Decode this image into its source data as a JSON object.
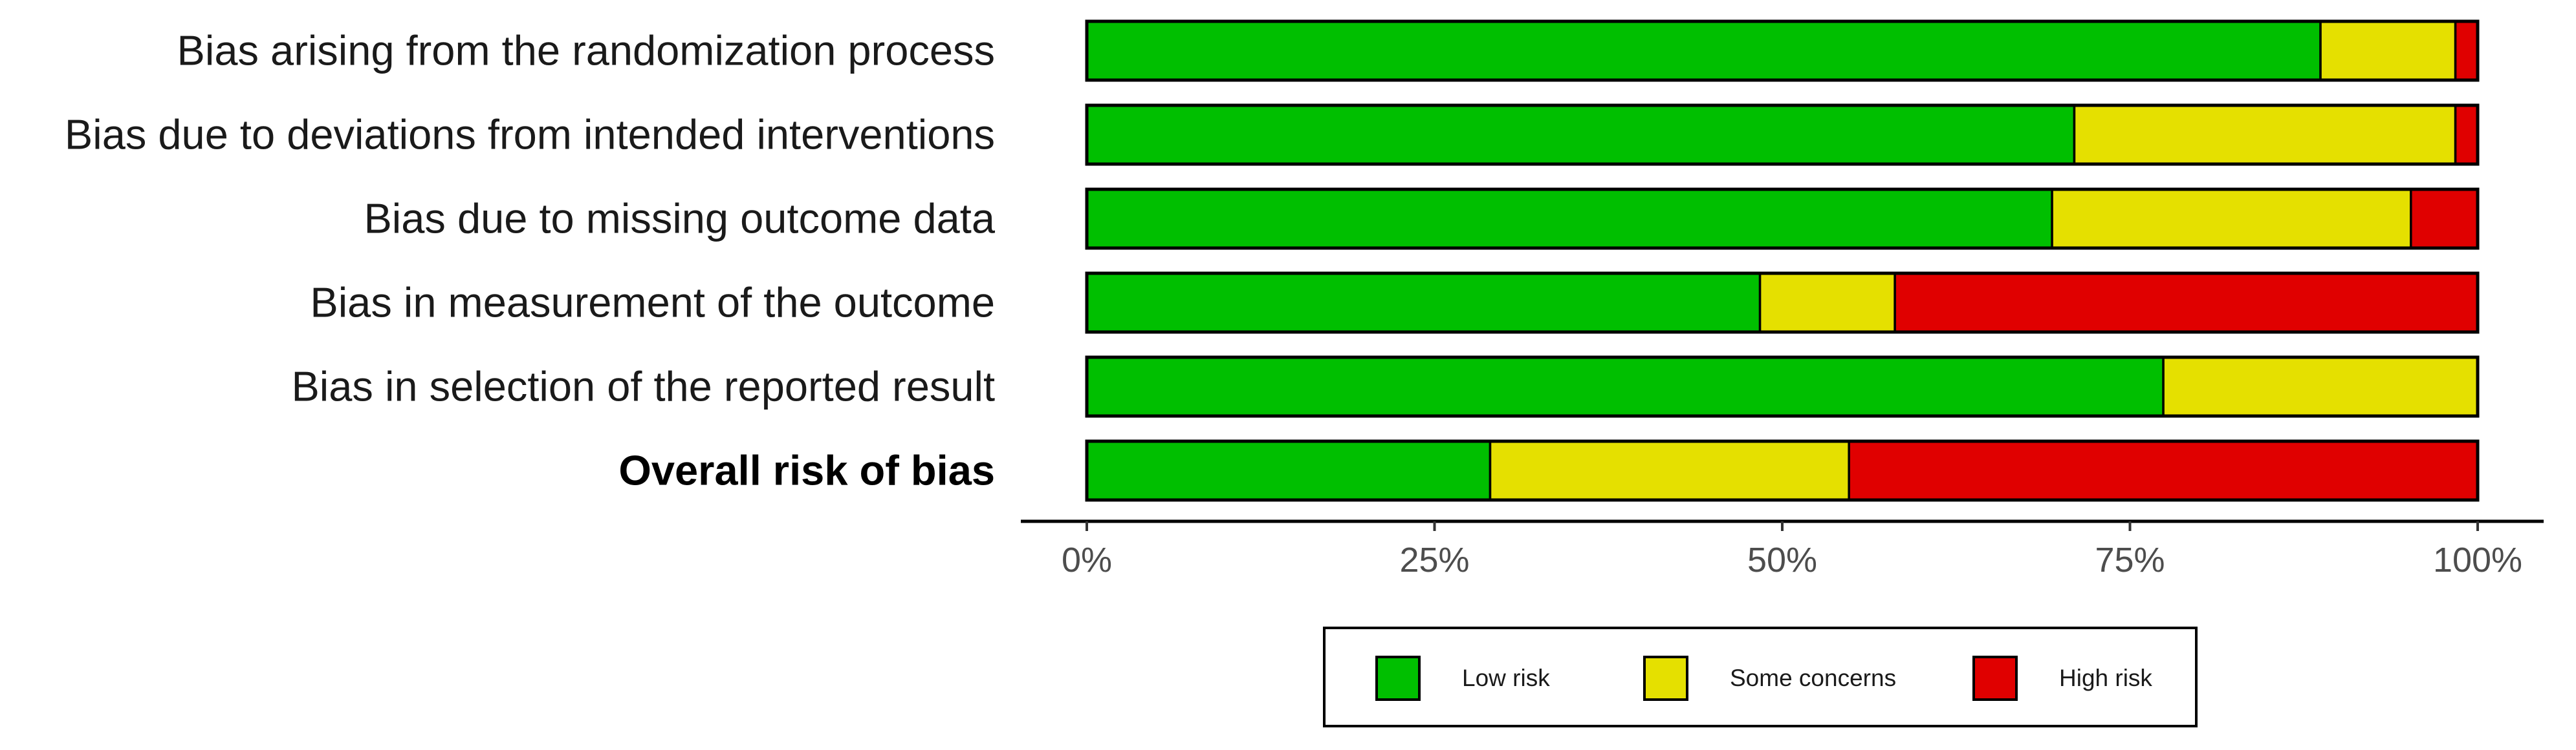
{
  "chart_data": {
    "type": "bar",
    "orientation": "horizontal",
    "stacked": true,
    "categories": [
      "Bias arising from the randomization process",
      "Bias due to deviations from intended interventions",
      "Bias due to missing outcome data",
      "Bias in measurement of the outcome",
      "Bias in selection of the reported result",
      "Overall risk of bias"
    ],
    "bold_categories": [
      "Overall risk of bias"
    ],
    "series": [
      {
        "name": "Low risk",
        "color": "#00bf00",
        "values": [
          88.7,
          71.0,
          69.4,
          48.4,
          77.4,
          29.0
        ]
      },
      {
        "name": "Some concerns",
        "color": "#e5e000",
        "values": [
          9.7,
          27.4,
          25.8,
          9.7,
          22.6,
          25.8
        ]
      },
      {
        "name": "High risk",
        "color": "#e00000",
        "values": [
          1.6,
          1.6,
          4.8,
          41.9,
          0.0,
          45.2
        ]
      }
    ],
    "xlim": [
      0,
      100
    ],
    "x_ticks": [
      0,
      25,
      50,
      75,
      100
    ],
    "x_tick_labels": [
      "0%",
      "25%",
      "50%",
      "75%",
      "100%"
    ],
    "title": "",
    "xlabel": "",
    "ylabel": "",
    "grid": false,
    "legend_position": "bottom"
  }
}
